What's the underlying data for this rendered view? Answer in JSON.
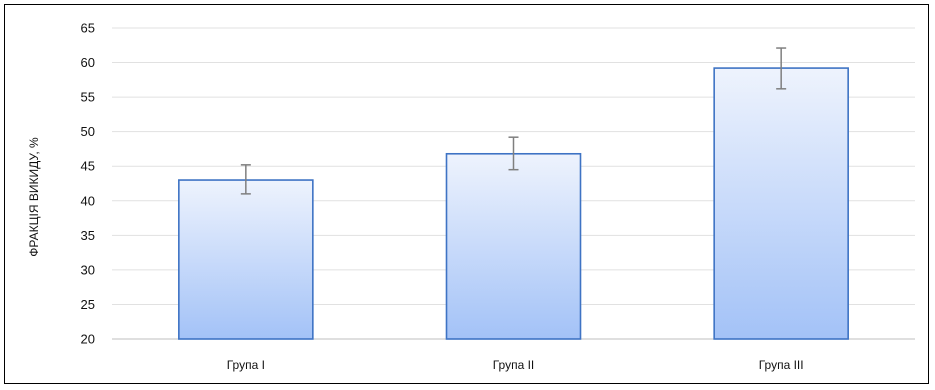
{
  "chart_data": {
    "type": "bar",
    "categories": [
      "Група I",
      "Група II",
      "Група III"
    ],
    "values": [
      43.0,
      46.8,
      59.2
    ],
    "error_bars": [
      {
        "low": 41.0,
        "high": 45.2
      },
      {
        "low": 44.5,
        "high": 49.2
      },
      {
        "low": 56.2,
        "high": 62.1
      }
    ],
    "title": "",
    "xlabel": "",
    "ylabel": "ФРАКЦІЯ ВИКИДУ, %",
    "ylim": [
      20,
      65
    ],
    "yticks": [
      "20",
      "25",
      "30",
      "35",
      "40",
      "45",
      "50",
      "55",
      "60",
      "65"
    ],
    "grid": true,
    "legend": "none"
  },
  "colors": {
    "bar_top": "#EEF3FD",
    "bar_bottom": "#A3C2F7",
    "bar_border": "#3E73C4",
    "error_bar": "#7F7F7F",
    "grid": "#E1E1E1",
    "axis": "#BFBFBF"
  }
}
